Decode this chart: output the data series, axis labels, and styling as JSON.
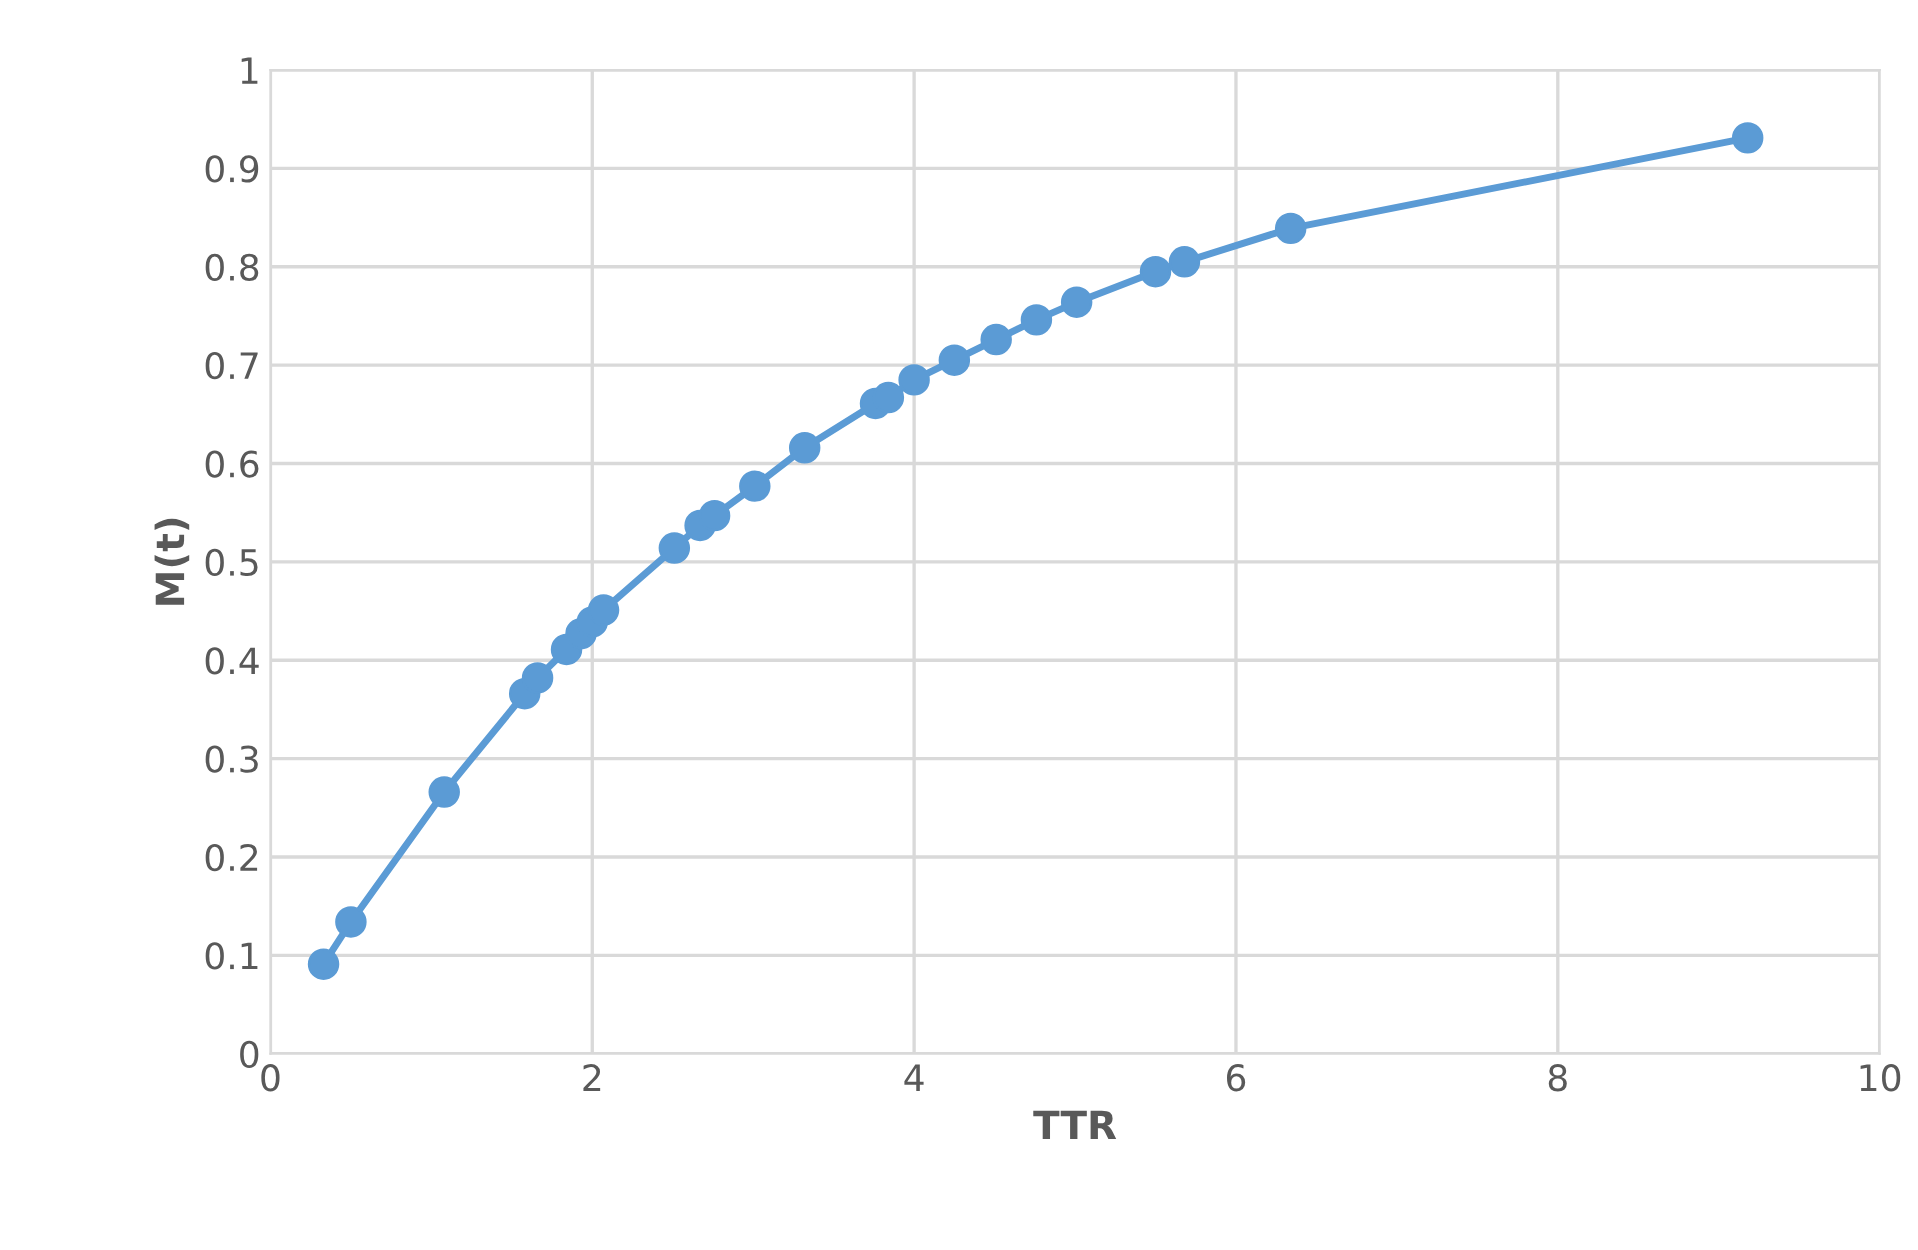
{
  "chart_data": {
    "type": "line",
    "xlabel": "TTR",
    "ylabel": "M(t)",
    "series": [
      {
        "color": "#5b9bd5",
        "x": [
          0.33,
          0.5,
          1.08,
          1.58,
          1.66,
          1.84,
          1.93,
          2.0,
          2.07,
          2.51,
          2.67,
          2.76,
          3.01,
          3.32,
          3.76,
          3.84,
          4.0,
          4.25,
          4.51,
          4.76,
          5.01,
          5.5,
          5.68,
          6.34,
          9.18
        ],
        "values": [
          0.091,
          0.134,
          0.266,
          0.366,
          0.382,
          0.411,
          0.427,
          0.439,
          0.451,
          0.514,
          0.537,
          0.547,
          0.577,
          0.616,
          0.661,
          0.667,
          0.685,
          0.705,
          0.726,
          0.746,
          0.764,
          0.795,
          0.805,
          0.839,
          0.931
        ]
      }
    ],
    "xlim": [
      0,
      10
    ],
    "xticks": [
      0,
      2,
      4,
      6,
      8,
      10
    ],
    "ylim": [
      0,
      1
    ],
    "yticks": [
      0,
      0.1,
      0.2,
      0.3,
      0.4,
      0.5,
      0.6,
      0.7,
      0.8,
      0.9,
      1
    ],
    "grid": true,
    "marker": "circle",
    "line_style": "solid",
    "legend": false
  }
}
